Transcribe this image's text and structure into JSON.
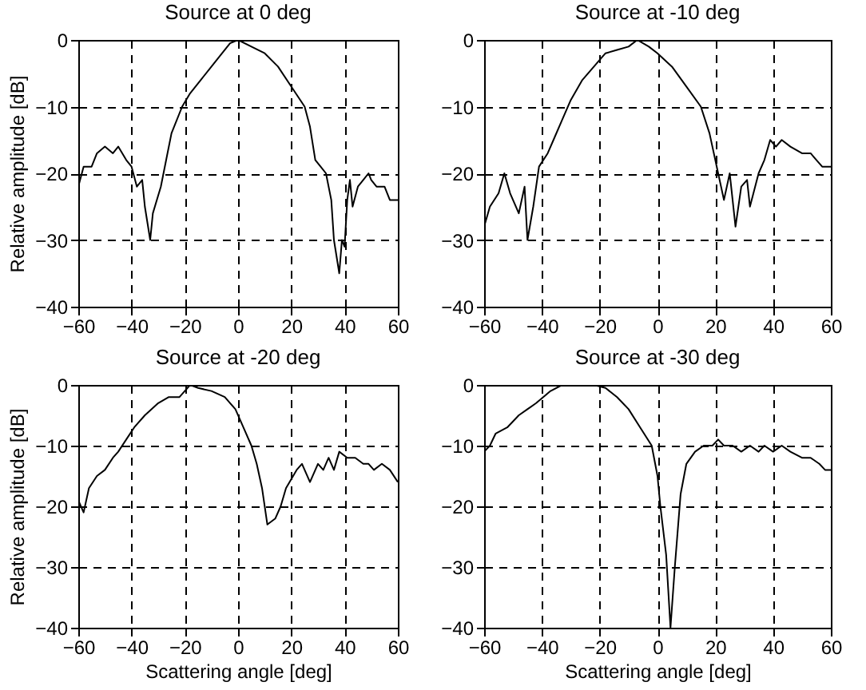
{
  "chart_data": [
    {
      "type": "line",
      "title": "Source at 0 deg",
      "ylabel": "Relative amplitude [dB]",
      "xlim": [
        -60,
        60
      ],
      "xticks": [
        -60,
        -40,
        -20,
        0,
        20,
        40,
        60
      ],
      "ylim": [
        -40,
        0
      ],
      "yticks": [
        -40,
        -30,
        -20,
        -10,
        0
      ],
      "grid": true,
      "x": [
        -60,
        -58,
        -55,
        -53,
        -50,
        -47,
        -45,
        -42,
        -40,
        -38,
        -36,
        -35,
        -33,
        -32,
        -29,
        -27,
        -25,
        -21,
        -18,
        -14,
        -10,
        -6,
        -3,
        0,
        5,
        10,
        15,
        20,
        25,
        27,
        29,
        31,
        33,
        35,
        36,
        38,
        39,
        40,
        41,
        42,
        43,
        45,
        47,
        49,
        50,
        52,
        55,
        57,
        60
      ],
      "series": [
        {
          "color": "#000000",
          "values": [
            -22,
            -19,
            -19,
            -17,
            -16,
            -17,
            -16,
            -18,
            -19,
            -22,
            -21,
            -25,
            -30,
            -26,
            -22,
            -18,
            -14,
            -10,
            -8,
            -6,
            -4,
            -2,
            -0.5,
            0,
            -1,
            -2,
            -4,
            -7,
            -10,
            -13,
            -18,
            -19,
            -20,
            -24,
            -30,
            -35,
            -30,
            -31,
            -24,
            -21,
            -25,
            -22,
            -21,
            -20,
            -21,
            -22,
            -22,
            -24,
            -24
          ]
        }
      ]
    },
    {
      "type": "line",
      "title": "Source at -10 deg",
      "xlim": [
        -60,
        60
      ],
      "xticks": [
        -60,
        -40,
        -20,
        0,
        20,
        40,
        60
      ],
      "ylim": [
        -40,
        0
      ],
      "yticks": [
        -40,
        -30,
        -20,
        -10,
        0
      ],
      "grid": true,
      "x": [
        -60,
        -58,
        -55,
        -53,
        -51,
        -48,
        -46,
        -45,
        -43,
        -41,
        -38,
        -36,
        -33,
        -30,
        -26,
        -22,
        -18,
        -14,
        -10,
        -7,
        -3,
        0,
        5,
        10,
        15,
        18,
        21,
        23,
        25,
        27,
        29,
        31,
        32,
        35,
        37,
        39,
        41,
        43,
        46,
        50,
        53,
        55,
        57,
        60
      ],
      "series": [
        {
          "color": "#000000",
          "values": [
            -28,
            -25,
            -23,
            -20,
            -23,
            -26,
            -22,
            -30,
            -25,
            -19,
            -17,
            -15,
            -12,
            -9,
            -6,
            -4,
            -2,
            -1.5,
            -1,
            0,
            -1,
            -2,
            -4,
            -7,
            -10,
            -14,
            -20,
            -24,
            -20,
            -28,
            -22,
            -21,
            -25,
            -20,
            -18,
            -15,
            -16,
            -15,
            -16,
            -17,
            -17,
            -18,
            -19,
            -19
          ]
        }
      ]
    },
    {
      "type": "line",
      "title": "Source at -20 deg",
      "xlabel": "Scattering angle [deg]",
      "ylabel": "Relative amplitude [dB]",
      "xlim": [
        -60,
        60
      ],
      "xticks": [
        -60,
        -40,
        -20,
        0,
        20,
        40,
        60
      ],
      "ylim": [
        -40,
        0
      ],
      "yticks": [
        -40,
        -30,
        -20,
        -10,
        0
      ],
      "grid": true,
      "x": [
        -60,
        -58,
        -56,
        -53,
        -50,
        -47,
        -45,
        -42,
        -39,
        -35,
        -30,
        -26,
        -22,
        -20,
        -18,
        -15,
        -10,
        -5,
        -1,
        2,
        5,
        7,
        9,
        11,
        14,
        16,
        18,
        22,
        24,
        27,
        30,
        32,
        34,
        36,
        38,
        41,
        44,
        47,
        49,
        51,
        54,
        57,
        60
      ],
      "series": [
        {
          "color": "#000000",
          "values": [
            -19,
            -21,
            -17,
            -15,
            -14,
            -12,
            -11,
            -9,
            -7,
            -5,
            -3,
            -2,
            -2,
            -1,
            0,
            -0.5,
            -1,
            -2,
            -4,
            -7,
            -10,
            -13,
            -17,
            -23,
            -22,
            -20,
            -17,
            -14,
            -13,
            -16,
            -13,
            -14,
            -12,
            -14,
            -11,
            -12,
            -12,
            -13,
            -13,
            -14,
            -13,
            -14,
            -16
          ]
        }
      ]
    },
    {
      "type": "line",
      "title": "Source at -30 deg",
      "xlabel": "Scattering angle [deg]",
      "xlim": [
        -60,
        60
      ],
      "xticks": [
        -60,
        -40,
        -20,
        0,
        20,
        40,
        60
      ],
      "ylim": [
        -40,
        0
      ],
      "yticks": [
        -40,
        -30,
        -20,
        -10,
        0
      ],
      "grid": true,
      "x": [
        -60,
        -58,
        -56,
        -52,
        -48,
        -45,
        -42,
        -37,
        -33,
        -28,
        -22,
        -18,
        -14,
        -10,
        -6,
        -2,
        0,
        1,
        3,
        4.5,
        6,
        8,
        10,
        13,
        16,
        19,
        21,
        23,
        26,
        29,
        32,
        35,
        37,
        40,
        43,
        46,
        50,
        53,
        56,
        58,
        60
      ],
      "series": [
        {
          "color": "#000000",
          "values": [
            -11,
            -10,
            -8,
            -7,
            -5,
            -4,
            -3,
            -1,
            0,
            0,
            0,
            -0.5,
            -2,
            -4,
            -7,
            -10,
            -15,
            -20,
            -28,
            -40,
            -30,
            -18,
            -13,
            -11,
            -10,
            -10,
            -9,
            -10,
            -10,
            -11,
            -10,
            -11,
            -10,
            -11,
            -10,
            -11,
            -12,
            -12,
            -13,
            -14,
            -14
          ]
        }
      ]
    }
  ]
}
